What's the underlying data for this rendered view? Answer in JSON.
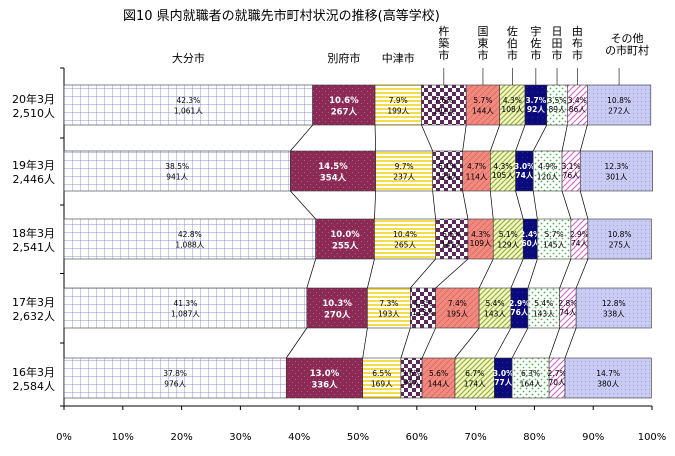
{
  "chart_data": {
    "type": "bar",
    "orientation": "horizontal-stacked-100",
    "title": "図10 県内就職者の就職先市町村状況の推移(高等学校)",
    "categories": [
      {
        "year": "20年3月",
        "total": "2,510人"
      },
      {
        "year": "19年3月",
        "total": "2,446人"
      },
      {
        "year": "18年3月",
        "total": "2,541人"
      },
      {
        "year": "17年3月",
        "total": "2,632人"
      },
      {
        "year": "16年3月",
        "total": "2,584人"
      }
    ],
    "series_names": [
      "大分市",
      "別府市",
      "中津市",
      "杵築市",
      "国東市",
      "佐伯市",
      "宇佐市",
      "日田市",
      "由布市",
      "その他の市町村"
    ],
    "series": [
      {
        "name": "大分市",
        "values": [
          42.3,
          38.5,
          42.8,
          41.3,
          37.8
        ],
        "labels": [
          "42.3%\n1,061人",
          "38.5%\n941人",
          "42.8%\n1,088人",
          "41.3%\n1,087人",
          "37.8%\n976人"
        ]
      },
      {
        "name": "別府市",
        "values": [
          10.6,
          14.5,
          10.0,
          10.3,
          13.0
        ],
        "labels": [
          "10.6%\n267人",
          "14.5%\n354人",
          "10.0%\n255人",
          "10.3%\n270人",
          "13.0%\n336人"
        ]
      },
      {
        "name": "中津市",
        "values": [
          7.9,
          9.7,
          10.4,
          7.3,
          6.5
        ],
        "labels": [
          "7.9%\n199人",
          "9.7%\n237人",
          "10.4%\n265人",
          "7.3%\n193人",
          "6.5%\n169人"
        ]
      },
      {
        "name": "杵築市",
        "values": [
          7.6,
          5.1,
          5.5,
          4.3,
          3.6
        ],
        "labels": [
          "7.6%\n192人",
          "5.1%\n124人",
          "5.5%\n141人",
          "4.3%\n113人",
          "3.6%\n94人"
        ]
      },
      {
        "name": "国東市",
        "values": [
          5.7,
          4.7,
          4.3,
          7.4,
          5.6
        ],
        "labels": [
          "5.7%\n144人",
          "4.7%\n114人",
          "4.3%\n109人",
          "7.4%\n195人",
          "5.6%\n144人"
        ]
      },
      {
        "name": "佐伯市",
        "values": [
          4.3,
          4.3,
          5.1,
          5.4,
          6.7
        ],
        "labels": [
          "4.3%\n108人",
          "4.3%\n105人",
          "5.1%\n129人",
          "5.4%\n143人",
          "6.7%\n174人"
        ]
      },
      {
        "name": "宇佐市",
        "values": [
          3.7,
          3.0,
          2.4,
          2.9,
          3.0
        ],
        "labels": [
          "3.7%\n92人",
          "3.0%\n74人",
          "2.4%\n60人",
          "2.9%\n76人",
          "3.0%\n77人"
        ]
      },
      {
        "name": "日田市",
        "values": [
          3.5,
          4.9,
          5.7,
          5.4,
          6.3
        ],
        "labels": [
          "3.5%\n89人",
          "4.9%\n120人",
          "5.7%\n145人",
          "5.4%\n143人",
          "6.3%\n164人"
        ]
      },
      {
        "name": "由布市",
        "values": [
          3.4,
          3.1,
          2.9,
          2.8,
          2.7
        ],
        "labels": [
          "3.4%\n86人",
          "3.1%\n76人",
          "2.9%\n74人",
          "2.8%\n74人",
          "2.7%\n70人"
        ]
      },
      {
        "name": "その他の市町村",
        "values": [
          10.8,
          12.3,
          10.8,
          12.8,
          14.7
        ],
        "labels": [
          "10.8%\n272人",
          "12.3%\n301人",
          "10.8%\n275人",
          "12.8%\n338人",
          "14.7%\n380人"
        ]
      }
    ],
    "xaxis": {
      "range": [
        0,
        100
      ],
      "ticks": [
        "0%",
        "10%",
        "20%",
        "30%",
        "40%",
        "50%",
        "60%",
        "70%",
        "80%",
        "90%",
        "100%"
      ]
    },
    "xlabel": "",
    "ylabel": "",
    "grid": false
  }
}
